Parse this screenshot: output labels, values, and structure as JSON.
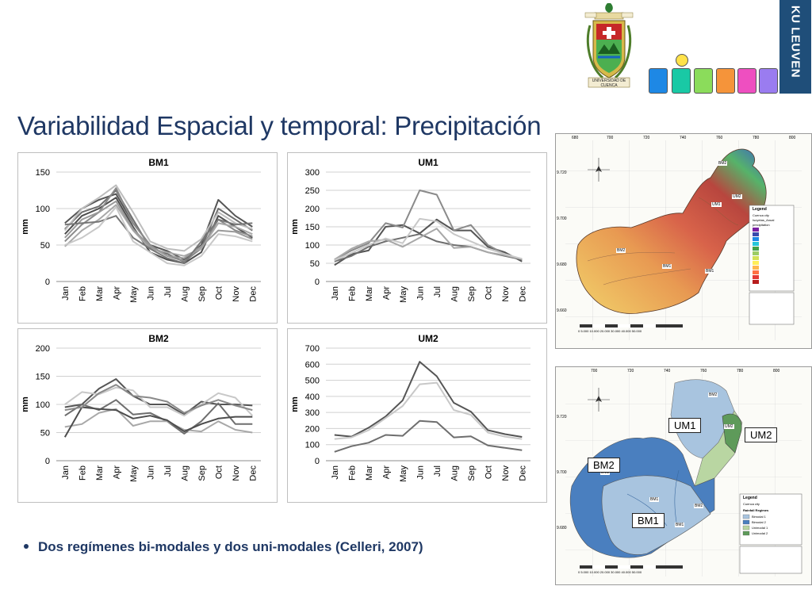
{
  "slide": {
    "title": "Variabilidad Espacial y temporal: Precipitación",
    "bullet": "Dos regímenes bi-modales y dos uni-modales (Celleri, 2007)"
  },
  "header": {
    "university_logo_text": "UNIVERSIDAD DE CUENCA",
    "ku_logo_text": "KU LEUVEN",
    "color_squares": [
      "#1e88e5",
      "#19c9a5",
      "#8bdc5b",
      "#f5943a",
      "#ee4fc0",
      "#9a7cf0"
    ],
    "figure_head_color": "#ffe24a"
  },
  "chart_data": [
    {
      "type": "line",
      "title": "BM1",
      "ylabel": "mm",
      "xlabel": "",
      "ylim": [
        0,
        150
      ],
      "yticks": [
        0,
        50,
        100,
        150
      ],
      "grid": true,
      "categories": [
        "Jan",
        "Feb",
        "Mar",
        "Apr",
        "May",
        "Jun",
        "Jul",
        "Aug",
        "Sep",
        "Oct",
        "Nov",
        "Dec"
      ],
      "series": [
        {
          "values": [
            80,
            100,
            112,
            120,
            80,
            50,
            42,
            30,
            50,
            112,
            90,
            75
          ],
          "color": "#555555"
        },
        {
          "values": [
            72,
            95,
            103,
            125,
            85,
            46,
            38,
            27,
            46,
            100,
            85,
            70
          ],
          "color": "#6e6e6e"
        },
        {
          "values": [
            65,
            90,
            100,
            115,
            75,
            40,
            30,
            25,
            40,
            90,
            75,
            60
          ],
          "color": "#4d4d4d"
        },
        {
          "values": [
            55,
            78,
            95,
            128,
            80,
            50,
            35,
            28,
            45,
            85,
            70,
            62
          ],
          "color": "#8a8a8a"
        },
        {
          "values": [
            48,
            70,
            85,
            105,
            70,
            45,
            40,
            35,
            45,
            80,
            75,
            65
          ],
          "color": "#a8a8a8"
        },
        {
          "values": [
            70,
            100,
            115,
            132,
            95,
            55,
            45,
            42,
            58,
            95,
            80,
            72
          ],
          "color": "#bdbdbd"
        },
        {
          "values": [
            60,
            85,
            95,
            110,
            72,
            48,
            35,
            32,
            48,
            70,
            68,
            58
          ],
          "color": "#9a9a9a"
        },
        {
          "values": [
            78,
            80,
            82,
            90,
            60,
            45,
            32,
            25,
            55,
            85,
            78,
            80
          ],
          "color": "#777777"
        },
        {
          "values": [
            50,
            60,
            75,
            102,
            55,
            40,
            25,
            22,
            35,
            65,
            62,
            55
          ],
          "color": "#c8c8c8"
        }
      ]
    },
    {
      "type": "line",
      "title": "UM1",
      "ylabel": "mm",
      "xlabel": "",
      "ylim": [
        0,
        300
      ],
      "yticks": [
        0,
        50,
        100,
        150,
        200,
        250,
        300
      ],
      "grid": true,
      "categories": [
        "Jan",
        "Feb",
        "Mar",
        "Apr",
        "May",
        "Jun",
        "Jul",
        "Aug",
        "Sep",
        "Oct",
        "Nov",
        "Dec"
      ],
      "series": [
        {
          "values": [
            45,
            75,
            85,
            150,
            155,
            132,
            170,
            140,
            140,
            95,
            80,
            55
          ],
          "color": "#555555"
        },
        {
          "values": [
            60,
            85,
            105,
            160,
            148,
            250,
            238,
            140,
            155,
            100,
            75,
            60
          ],
          "color": "#8a8a8a"
        },
        {
          "values": [
            55,
            70,
            95,
            110,
            120,
            130,
            110,
            100,
            95,
            80,
            70,
            60
          ],
          "color": "#6e6e6e"
        },
        {
          "values": [
            60,
            90,
            110,
            115,
            95,
            120,
            145,
            92,
            95,
            80,
            72,
            62
          ],
          "color": "#a8a8a8"
        },
        {
          "values": [
            58,
            78,
            100,
            118,
            105,
            172,
            165,
            130,
            110,
            90,
            75,
            62
          ],
          "color": "#c8c8c8"
        }
      ]
    },
    {
      "type": "line",
      "title": "BM2",
      "ylabel": "mm",
      "xlabel": "",
      "ylim": [
        0,
        200
      ],
      "yticks": [
        0,
        50,
        100,
        150,
        200
      ],
      "grid": true,
      "categories": [
        "Jan",
        "Feb",
        "Mar",
        "Apr",
        "May",
        "Jun",
        "Jul",
        "Aug",
        "Sep",
        "Oct",
        "Nov",
        "Dec"
      ],
      "series": [
        {
          "values": [
            95,
            100,
            128,
            145,
            115,
            100,
            100,
            82,
            105,
            100,
            100,
            98
          ],
          "color": "#555555"
        },
        {
          "values": [
            80,
            100,
            90,
            108,
            82,
            85,
            70,
            48,
            70,
            102,
            65,
            65
          ],
          "color": "#6e6e6e"
        },
        {
          "values": [
            60,
            65,
            85,
            92,
            62,
            70,
            70,
            55,
            52,
            70,
            55,
            50
          ],
          "color": "#a8a8a8"
        },
        {
          "values": [
            100,
            122,
            118,
            130,
            125,
            95,
            95,
            80,
            100,
            120,
            112,
            80
          ],
          "color": "#c8c8c8"
        },
        {
          "values": [
            42,
            95,
            92,
            90,
            75,
            80,
            72,
            52,
            65,
            75,
            78,
            78
          ],
          "color": "#4d4d4d"
        },
        {
          "values": [
            90,
            95,
            120,
            135,
            115,
            112,
            105,
            85,
            98,
            108,
            98,
            90
          ],
          "color": "#8a8a8a"
        }
      ]
    },
    {
      "type": "line",
      "title": "UM2",
      "ylabel": "mm",
      "xlabel": "",
      "ylim": [
        0,
        700
      ],
      "yticks": [
        0,
        100,
        200,
        300,
        400,
        500,
        600,
        700
      ],
      "grid": true,
      "categories": [
        "Jan",
        "Feb",
        "Mar",
        "Apr",
        "May",
        "Jun",
        "Jul",
        "Aug",
        "Sep",
        "Oct",
        "Nov",
        "Dec"
      ],
      "series": [
        {
          "values": [
            160,
            150,
            205,
            275,
            375,
            615,
            525,
            360,
            305,
            190,
            165,
            148
          ],
          "color": "#555555"
        },
        {
          "values": [
            55,
            90,
            112,
            160,
            155,
            248,
            240,
            145,
            152,
            95,
            80,
            65
          ],
          "color": "#6e6e6e"
        },
        {
          "values": [
            135,
            145,
            190,
            265,
            340,
            475,
            485,
            315,
            285,
            175,
            150,
            135
          ],
          "color": "#c8c8c8"
        }
      ]
    }
  ],
  "map_top": {
    "x_ticks": [
      "680",
      "700",
      "720",
      "740",
      "760",
      "780",
      "800"
    ],
    "y_ticks": [
      "9.720",
      "9.700",
      "9.680",
      "9.660"
    ],
    "regions": [
      "BM2",
      "UM2",
      "UM1",
      "BM1",
      "BM2",
      "BM1"
    ],
    "legend_title": "Legend",
    "legend_items": [
      "Cuenca city",
      "Isoyetas_Anual",
      "precipitation"
    ],
    "scalebar": "0  5.000 10.000   20.000   30.000   40.000   50.000"
  },
  "map_bottom": {
    "x_ticks": [
      "700",
      "720",
      "740",
      "760",
      "780",
      "800"
    ],
    "y_ticks": [
      "9.720",
      "9.700",
      "9.680"
    ],
    "callouts": [
      "UM1",
      "UM2",
      "BM2",
      "BM1"
    ],
    "inner_labels": [
      "BM2",
      "UM2",
      "BM2",
      "BM1",
      "BM2",
      "BM1"
    ],
    "legend_title": "Legend",
    "legend_items": [
      "Cuenca city",
      "Rainfall Regimes",
      "Bimodal 1",
      "Bimodal 2",
      "Unimodal 1",
      "Unimodal 2"
    ],
    "legend_colors": [
      "#a8c4df",
      "#4a7fbf",
      "#b9d6a2",
      "#5e9a5a"
    ],
    "scalebar": "0  5.000 10.000   20.000   30.000   40.000   50.000"
  }
}
